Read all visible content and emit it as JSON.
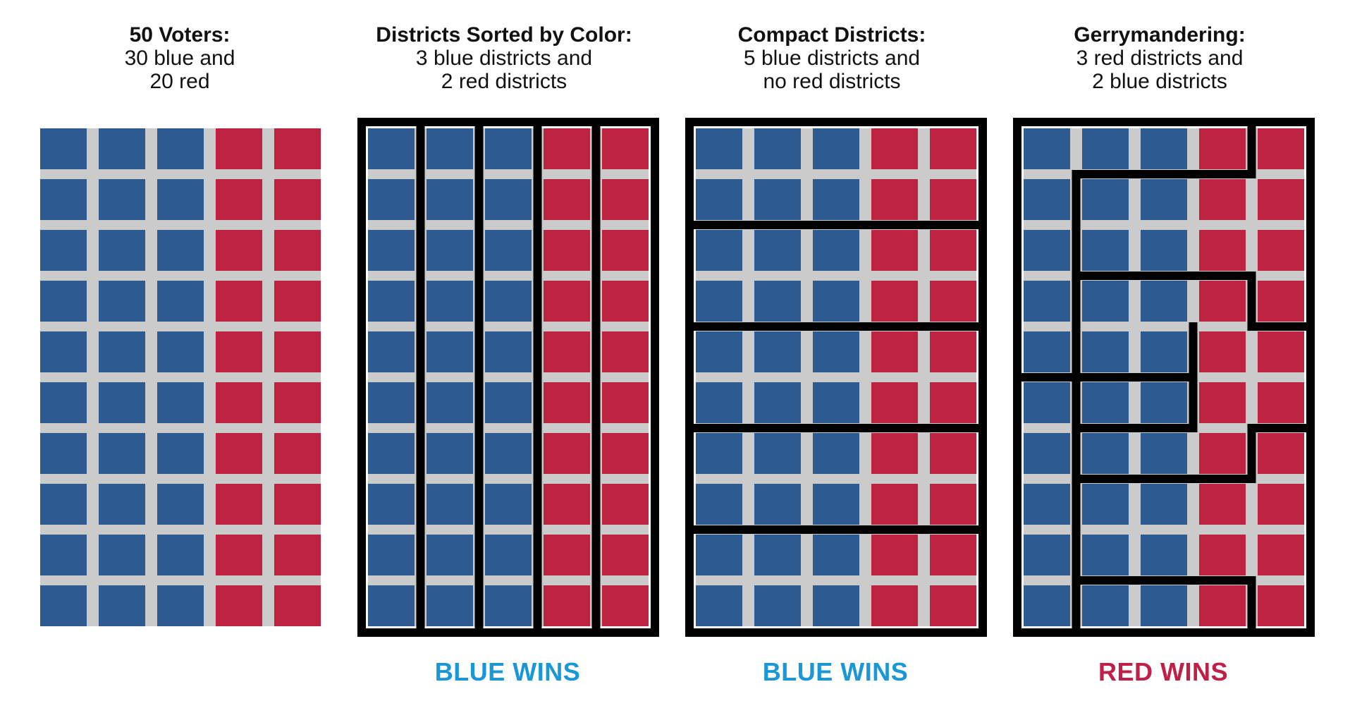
{
  "colors": {
    "blue": "#2d5b91",
    "red": "#bd2240",
    "grid": "#cbcbcb",
    "border": "#000000",
    "win_blue": "#1a97d6",
    "win_red": "#c02048"
  },
  "grid": {
    "columns": 5,
    "rows": 10,
    "column_colors": [
      "blue",
      "blue",
      "blue",
      "red",
      "red"
    ]
  },
  "panels": [
    {
      "title": "50 Voters:",
      "line1": "30 blue and",
      "line2": "20 red",
      "result": "",
      "result_color": ""
    },
    {
      "title": "Districts Sorted by Color:",
      "line1": "3 blue districts and",
      "line2": "2 red districts",
      "result": "BLUE WINS",
      "result_color": "blue",
      "districts": "vertical-columns"
    },
    {
      "title": "Compact Districts:",
      "line1": "5 blue districts and",
      "line2": "no red districts",
      "result": "BLUE WINS",
      "result_color": "blue",
      "districts": "horizontal-pairs-of-rows"
    },
    {
      "title": "Gerrymandering:",
      "line1": "3 red districts and",
      "line2": "2 blue districts",
      "result": "RED WINS",
      "result_color": "red",
      "districts": "interlocking-snake"
    }
  ]
}
